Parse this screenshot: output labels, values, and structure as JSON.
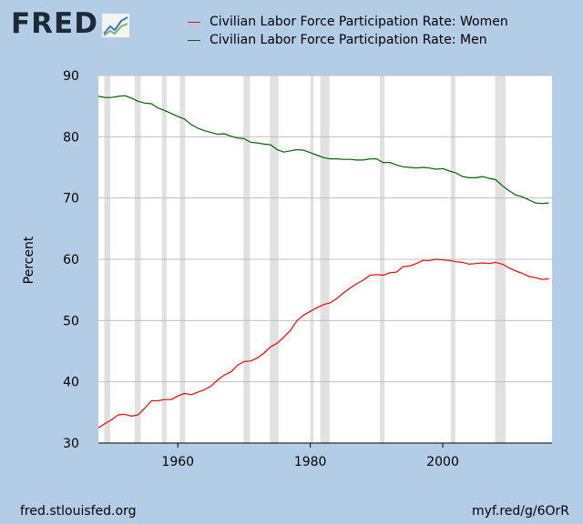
{
  "logo": {
    "text": "FRED"
  },
  "footer": {
    "source": "fred.stlouisfed.org",
    "link": "myf.red/g/6OrR"
  },
  "colors": {
    "women": "#ff0000",
    "men": "#006400",
    "recession": "#e1e1e1",
    "plot_bg": "#ffffff",
    "grid": "#c0c0c0"
  },
  "chart_data": {
    "type": "line",
    "title": "",
    "xlabel": "",
    "ylabel": "Percent",
    "xlim": [
      1948,
      2016.5
    ],
    "ylim": [
      30,
      90
    ],
    "yticks": [
      30,
      40,
      50,
      60,
      70,
      80,
      90
    ],
    "xticks": [
      1960,
      1980,
      2000
    ],
    "grid": "horizontal",
    "legend": "top",
    "recessions": [
      [
        1948.9,
        1949.8
      ],
      [
        1953.5,
        1954.4
      ],
      [
        1957.6,
        1958.3
      ],
      [
        1960.3,
        1961.1
      ],
      [
        1969.9,
        1970.9
      ],
      [
        1973.9,
        1975.2
      ],
      [
        1980.0,
        1980.5
      ],
      [
        1981.5,
        1982.9
      ],
      [
        1990.5,
        1991.2
      ],
      [
        2001.2,
        2001.9
      ],
      [
        2007.9,
        2009.5
      ]
    ],
    "series": [
      {
        "name": "Civilian Labor Force Participation Rate: Women",
        "color": "#ff0000",
        "x": [
          1948,
          1949,
          1950,
          1951,
          1952,
          1953,
          1954,
          1955,
          1956,
          1957,
          1958,
          1959,
          1960,
          1961,
          1962,
          1963,
          1964,
          1965,
          1966,
          1967,
          1968,
          1969,
          1970,
          1971,
          1972,
          1973,
          1974,
          1975,
          1976,
          1977,
          1978,
          1979,
          1980,
          1981,
          1982,
          1983,
          1984,
          1985,
          1986,
          1987,
          1988,
          1989,
          1990,
          1991,
          1992,
          1993,
          1994,
          1995,
          1996,
          1997,
          1998,
          1999,
          2000,
          2001,
          2002,
          2003,
          2004,
          2005,
          2006,
          2007,
          2008,
          2009,
          2010,
          2011,
          2012,
          2013,
          2014,
          2015,
          2016
        ],
        "values": [
          32.5,
          33.2,
          33.8,
          34.6,
          34.7,
          34.4,
          34.6,
          35.7,
          36.9,
          36.9,
          37.1,
          37.1,
          37.7,
          38.1,
          37.9,
          38.3,
          38.7,
          39.3,
          40.3,
          41.1,
          41.6,
          42.7,
          43.3,
          43.4,
          43.9,
          44.7,
          45.7,
          46.3,
          47.3,
          48.4,
          50.0,
          50.9,
          51.5,
          52.1,
          52.6,
          52.9,
          53.6,
          54.5,
          55.3,
          56.0,
          56.6,
          57.4,
          57.5,
          57.4,
          57.8,
          57.9,
          58.8,
          58.9,
          59.3,
          59.8,
          59.8,
          60.0,
          59.9,
          59.8,
          59.6,
          59.5,
          59.2,
          59.3,
          59.4,
          59.3,
          59.5,
          59.2,
          58.6,
          58.1,
          57.7,
          57.2,
          57.0,
          56.7,
          56.8
        ]
      },
      {
        "name": "Civilian Labor Force Participation Rate: Men",
        "color": "#006400",
        "x": [
          1948,
          1949,
          1950,
          1951,
          1952,
          1953,
          1954,
          1955,
          1956,
          1957,
          1958,
          1959,
          1960,
          1961,
          1962,
          1963,
          1964,
          1965,
          1966,
          1967,
          1968,
          1969,
          1970,
          1971,
          1972,
          1973,
          1974,
          1975,
          1976,
          1977,
          1978,
          1979,
          1980,
          1981,
          1982,
          1983,
          1984,
          1985,
          1986,
          1987,
          1988,
          1989,
          1990,
          1991,
          1992,
          1993,
          1994,
          1995,
          1996,
          1997,
          1998,
          1999,
          2000,
          2001,
          2002,
          2003,
          2004,
          2005,
          2006,
          2007,
          2008,
          2009,
          2010,
          2011,
          2012,
          2013,
          2014,
          2015,
          2016
        ],
        "values": [
          86.6,
          86.4,
          86.4,
          86.6,
          86.7,
          86.3,
          85.8,
          85.5,
          85.4,
          84.7,
          84.3,
          83.8,
          83.3,
          82.9,
          82.0,
          81.4,
          81.0,
          80.7,
          80.4,
          80.5,
          80.1,
          79.8,
          79.7,
          79.1,
          79.0,
          78.8,
          78.7,
          77.9,
          77.5,
          77.7,
          77.9,
          77.8,
          77.4,
          77.0,
          76.6,
          76.4,
          76.4,
          76.3,
          76.3,
          76.2,
          76.2,
          76.4,
          76.4,
          75.8,
          75.8,
          75.4,
          75.1,
          75.0,
          74.9,
          75.0,
          74.9,
          74.7,
          74.8,
          74.4,
          74.1,
          73.5,
          73.3,
          73.3,
          73.5,
          73.2,
          73.0,
          72.0,
          71.2,
          70.5,
          70.2,
          69.7,
          69.2,
          69.1,
          69.2
        ]
      }
    ]
  }
}
